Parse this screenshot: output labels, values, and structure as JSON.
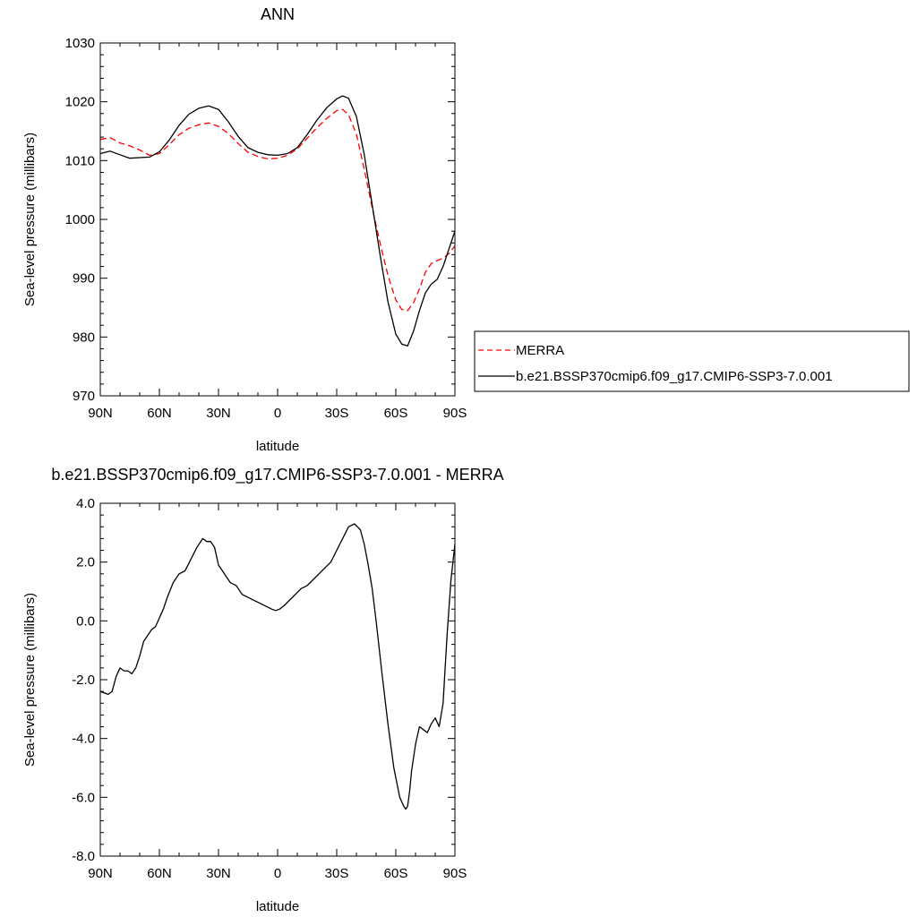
{
  "chart_data": [
    {
      "type": "line",
      "title": "ANN",
      "xlabel": "latitude",
      "ylabel": "Sea-level pressure (millibars)",
      "xlim": [
        90,
        -90
      ],
      "ylim": [
        970,
        1030
      ],
      "x_ticks": [
        90,
        60,
        30,
        0,
        -30,
        -60,
        -90
      ],
      "x_tick_labels": [
        "90N",
        "60N",
        "30N",
        "0",
        "30S",
        "60S",
        "90S"
      ],
      "y_ticks": [
        970,
        980,
        990,
        1000,
        1010,
        1020,
        1030
      ],
      "y_tick_labels": [
        "970",
        "980",
        "990",
        "1000",
        "1010",
        "1020",
        "1030"
      ],
      "grid": false,
      "legend_position": "right",
      "series": [
        {
          "name": "MERRA",
          "color": "#ff0000",
          "dash": "dashed",
          "x": [
            90,
            85,
            80,
            75,
            70,
            65,
            60,
            55,
            50,
            45,
            40,
            35,
            30,
            25,
            20,
            15,
            10,
            5,
            0,
            -5,
            -10,
            -15,
            -20,
            -25,
            -30,
            -33,
            -36,
            -40,
            -44,
            -48,
            -52,
            -56,
            -60,
            -63,
            -66,
            -69,
            -72,
            -75,
            -78,
            -81,
            -84,
            -87,
            -90
          ],
          "y": [
            1013.6,
            1013.9,
            1013.0,
            1012.5,
            1011.8,
            1010.9,
            1011.2,
            1012.7,
            1014.4,
            1015.5,
            1016.1,
            1016.4,
            1015.8,
            1014.6,
            1012.9,
            1011.4,
            1010.7,
            1010.3,
            1010.4,
            1010.9,
            1012.0,
            1013.8,
            1015.6,
            1017.2,
            1018.5,
            1018.7,
            1017.8,
            1014.5,
            1008.5,
            1002.0,
            996.0,
            990.5,
            986.3,
            984.7,
            984.5,
            985.8,
            988.2,
            991.0,
            992.5,
            993.0,
            993.4,
            994.2,
            995.5
          ]
        },
        {
          "name": "b.e21.BSSP370cmip6.f09_g17.CMIP6-SSP3-7.0.001",
          "color": "#000000",
          "dash": "solid",
          "x": [
            90,
            85,
            80,
            75,
            70,
            65,
            60,
            55,
            50,
            45,
            40,
            35,
            30,
            25,
            20,
            15,
            10,
            5,
            0,
            -5,
            -10,
            -15,
            -20,
            -25,
            -30,
            -33,
            -36,
            -40,
            -44,
            -48,
            -52,
            -56,
            -60,
            -63,
            -66,
            -69,
            -72,
            -75,
            -78,
            -81,
            -84,
            -87,
            -90
          ],
          "y": [
            1011.2,
            1011.6,
            1011.0,
            1010.4,
            1010.5,
            1010.6,
            1011.5,
            1013.5,
            1016.0,
            1017.9,
            1018.9,
            1019.3,
            1018.7,
            1016.6,
            1014.1,
            1012.2,
            1011.4,
            1011.0,
            1010.9,
            1011.2,
            1012.2,
            1014.4,
            1016.9,
            1019.0,
            1020.5,
            1021.0,
            1020.6,
            1017.5,
            1011.0,
            1002.5,
            994.0,
            986.0,
            980.5,
            978.8,
            978.5,
            981.0,
            984.5,
            987.5,
            989.0,
            989.8,
            992.0,
            995.0,
            998.0
          ]
        }
      ]
    },
    {
      "type": "line",
      "title": "b.e21.BSSP370cmip6.f09_g17.CMIP6-SSP3-7.0.001 - MERRA",
      "xlabel": "latitude",
      "ylabel": "Sea-level pressure (millibars)",
      "xlim": [
        90,
        -90
      ],
      "ylim": [
        -8,
        4
      ],
      "x_ticks": [
        90,
        60,
        30,
        0,
        -30,
        -60,
        -90
      ],
      "x_tick_labels": [
        "90N",
        "60N",
        "30N",
        "0",
        "30S",
        "60S",
        "90S"
      ],
      "y_ticks": [
        -8,
        -6,
        -4,
        -2,
        0,
        2,
        4
      ],
      "y_tick_labels": [
        "-8.0",
        "-6.0",
        "-4.0",
        "-2.0",
        "0.0",
        "2.0",
        "4.0"
      ],
      "grid": false,
      "series": [
        {
          "color": "#000000",
          "dash": "solid",
          "x": [
            90,
            86,
            84,
            82,
            80,
            78,
            76,
            74,
            72,
            70,
            68,
            66,
            64,
            62,
            60,
            58,
            56,
            53,
            50,
            47,
            44,
            41,
            38,
            36,
            34,
            32,
            30,
            28,
            26,
            24,
            21,
            18,
            15,
            12,
            9,
            6,
            3,
            1,
            -1,
            -3,
            -6,
            -9,
            -12,
            -15,
            -18,
            -21,
            -24,
            -27,
            -30,
            -33,
            -36,
            -39,
            -42,
            -44,
            -46,
            -48,
            -50,
            -53,
            -56,
            -59,
            -62,
            -64,
            -65,
            -66,
            -67,
            -68,
            -70,
            -72,
            -74,
            -76,
            -78,
            -80,
            -82,
            -84,
            -86,
            -88,
            -90
          ],
          "y": [
            -2.4,
            -2.5,
            -2.4,
            -1.9,
            -1.6,
            -1.7,
            -1.7,
            -1.8,
            -1.6,
            -1.2,
            -0.7,
            -0.5,
            -0.3,
            -0.2,
            0.1,
            0.4,
            0.8,
            1.3,
            1.6,
            1.7,
            2.1,
            2.5,
            2.8,
            2.7,
            2.7,
            2.5,
            1.9,
            1.7,
            1.5,
            1.3,
            1.2,
            0.9,
            0.8,
            0.7,
            0.6,
            0.5,
            0.4,
            0.35,
            0.4,
            0.5,
            0.7,
            0.9,
            1.1,
            1.2,
            1.4,
            1.6,
            1.8,
            2.0,
            2.4,
            2.8,
            3.2,
            3.3,
            3.1,
            2.6,
            1.9,
            1.1,
            0.0,
            -1.8,
            -3.5,
            -5.0,
            -6.0,
            -6.3,
            -6.4,
            -6.3,
            -5.8,
            -5.1,
            -4.2,
            -3.6,
            -3.7,
            -3.8,
            -3.5,
            -3.3,
            -3.6,
            -2.8,
            -0.5,
            1.4,
            2.6
          ]
        }
      ]
    }
  ]
}
